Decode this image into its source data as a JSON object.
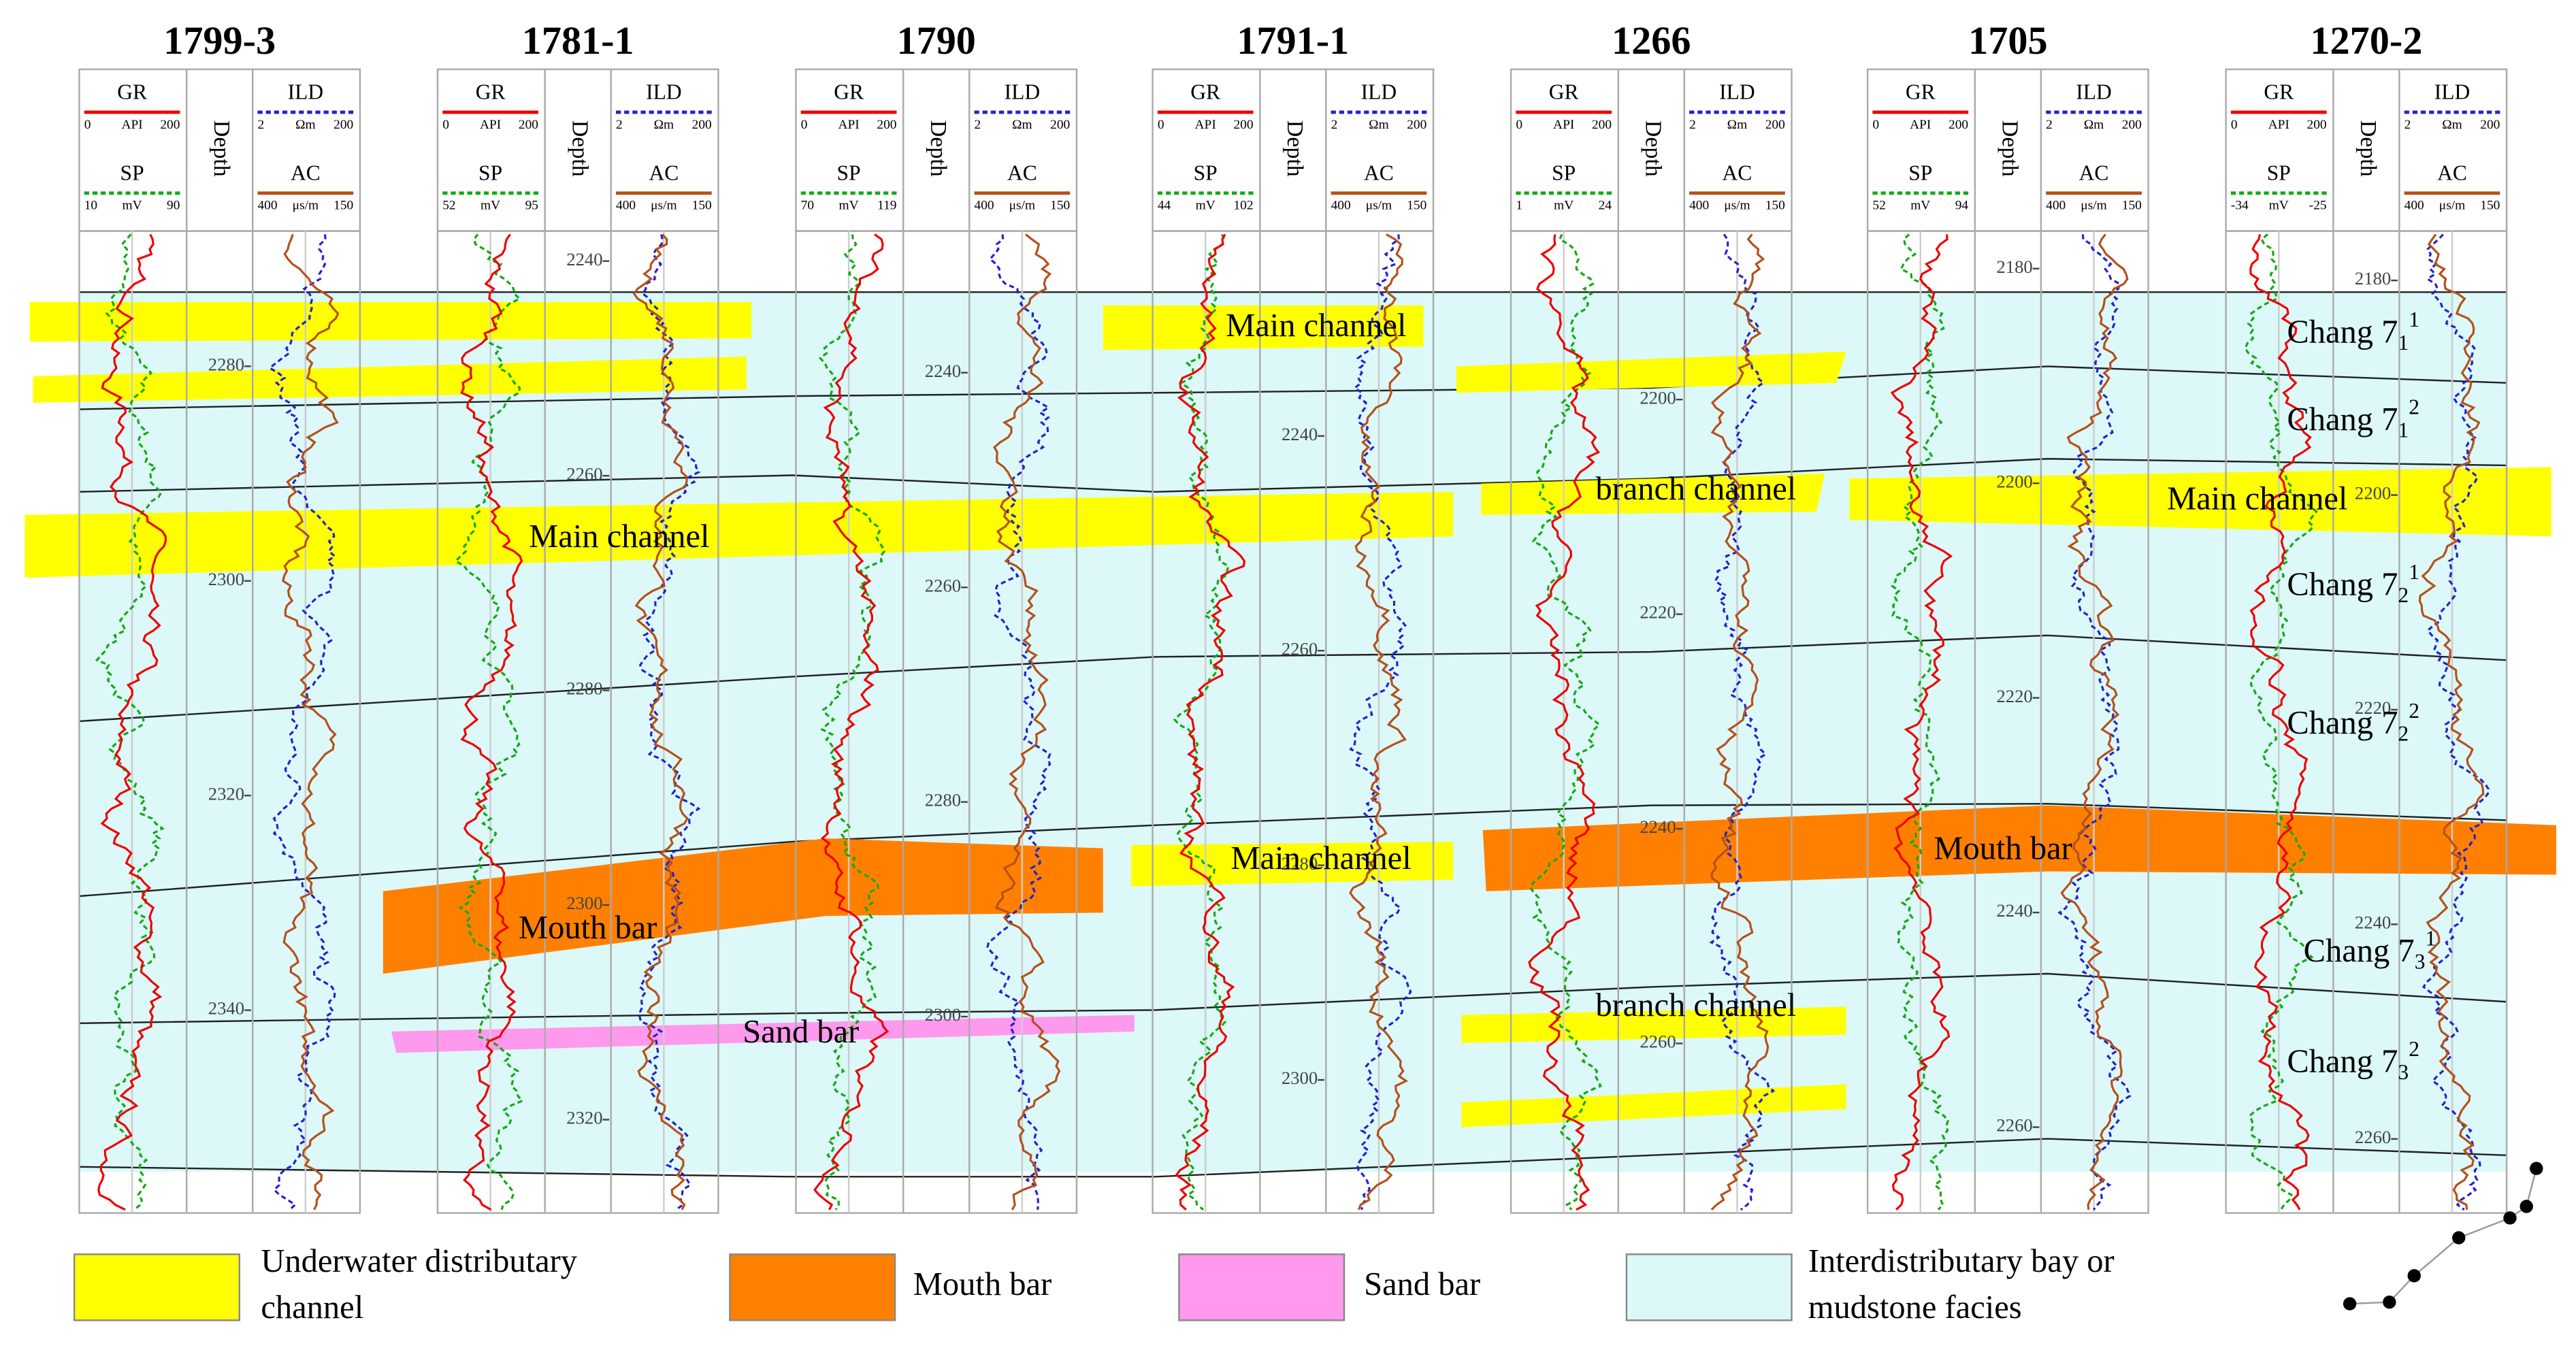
{
  "wells": [
    {
      "name": "1799-3",
      "curve_names": [
        "GR",
        "SP",
        "ILD",
        "AC"
      ],
      "gr_scale": [
        "0",
        "API",
        "200"
      ],
      "sp_scale": [
        "10",
        "mV",
        "90"
      ],
      "ild_scale": [
        "2",
        "Ωm",
        "200"
      ],
      "ac_scale": [
        "400",
        "μs/m",
        "150"
      ],
      "depth_label": "Depth",
      "depth_range": [
        2267.4,
        2358.9
      ],
      "depth_ticks": [
        2280,
        2300,
        2320,
        2340
      ]
    },
    {
      "name": "1781-1",
      "curve_names": [
        "GR",
        "SP",
        "ILD",
        "AC"
      ],
      "gr_scale": [
        "0",
        "API",
        "200"
      ],
      "sp_scale": [
        "52",
        "mV",
        "95"
      ],
      "ild_scale": [
        "2",
        "Ωm",
        "200"
      ],
      "ac_scale": [
        "400",
        "μs/m",
        "150"
      ],
      "depth_label": "Depth",
      "depth_range": [
        2237.2,
        2328.7
      ],
      "depth_ticks": [
        2240,
        2260,
        2280,
        2300,
        2320
      ]
    },
    {
      "name": "1790",
      "curve_names": [
        "GR",
        "SP",
        "ILD",
        "AC"
      ],
      "gr_scale": [
        "0",
        "API",
        "200"
      ],
      "sp_scale": [
        "70",
        "mV",
        "119"
      ],
      "ild_scale": [
        "2",
        "Ωm",
        "200"
      ],
      "ac_scale": [
        "400",
        "μs/m",
        "150"
      ],
      "depth_label": "Depth",
      "depth_range": [
        2226.8,
        2318.3
      ],
      "depth_ticks": [
        2240,
        2260,
        2280,
        2300
      ]
    },
    {
      "name": "1791-1",
      "curve_names": [
        "GR",
        "SP",
        "ILD",
        "AC"
      ],
      "gr_scale": [
        "0",
        "API",
        "200"
      ],
      "sp_scale": [
        "44",
        "mV",
        "102"
      ],
      "ild_scale": [
        "2",
        "Ωm",
        "200"
      ],
      "ac_scale": [
        "400",
        "μs/m",
        "150"
      ],
      "depth_label": "Depth",
      "depth_range": [
        2220.9,
        2312.4
      ],
      "depth_ticks": [
        2240,
        2260,
        2280,
        2300
      ]
    },
    {
      "name": "1266",
      "curve_names": [
        "GR",
        "SP",
        "ILD",
        "AC"
      ],
      "gr_scale": [
        "0",
        "API",
        "200"
      ],
      "sp_scale": [
        "1",
        "mV",
        "24"
      ],
      "ild_scale": [
        "2",
        "Ωm",
        "200"
      ],
      "ac_scale": [
        "400",
        "μs/m",
        "150"
      ],
      "depth_label": "Depth",
      "depth_range": [
        2184.3,
        2275.8
      ],
      "depth_ticks": [
        2200,
        2220,
        2240,
        2260
      ]
    },
    {
      "name": "1705",
      "curve_names": [
        "GR",
        "SP",
        "ILD",
        "AC"
      ],
      "gr_scale": [
        "0",
        "API",
        "200"
      ],
      "sp_scale": [
        "52",
        "mV",
        "94"
      ],
      "ild_scale": [
        "2",
        "Ωm",
        "200"
      ],
      "ac_scale": [
        "400",
        "μs/m",
        "150"
      ],
      "depth_label": "Depth",
      "depth_range": [
        2176.5,
        2268.0
      ],
      "depth_ticks": [
        2180,
        2200,
        2220,
        2240,
        2260
      ]
    },
    {
      "name": "1270-2",
      "curve_names": [
        "GR",
        "SP",
        "ILD",
        "AC"
      ],
      "gr_scale": [
        "0",
        "API",
        "200"
      ],
      "sp_scale": [
        "-34",
        "mV",
        "-25"
      ],
      "ild_scale": [
        "2",
        "Ωm",
        "200"
      ],
      "ac_scale": [
        "400",
        "μs/m",
        "150"
      ],
      "depth_label": "Depth",
      "depth_range": [
        2175.4,
        2266.9
      ],
      "depth_ticks": [
        2180,
        2200,
        2220,
        2240,
        2260
      ]
    }
  ],
  "facies_labels": [
    "Main channel",
    "Main channel",
    "branch channel",
    "Main channel",
    "Mouth bar",
    "Sand bar",
    "Main channel",
    "Mouth bar",
    "branch channel"
  ],
  "layers": [
    {
      "base": "Chang 7",
      "sub": "1",
      "sup": "1"
    },
    {
      "base": "Chang 7",
      "sub": "1",
      "sup": "2"
    },
    {
      "base": "Chang 7",
      "sub": "2",
      "sup": "1"
    },
    {
      "base": "Chang 7",
      "sub": "2",
      "sup": "2"
    },
    {
      "base": "Chang 7",
      "sub": "3",
      "sup": "1"
    },
    {
      "base": "Chang 7",
      "sub": "3",
      "sup": "2"
    }
  ],
  "legend": [
    {
      "lines": [
        "Underwater distributary",
        "channel"
      ],
      "color": "#ffff00"
    },
    {
      "lines": [
        "Mouth bar"
      ],
      "color": "#ff8000"
    },
    {
      "lines": [
        "Sand bar"
      ],
      "color": "#ff99ee"
    },
    {
      "lines": [
        "Interdistributary bay or",
        "mudstone facies"
      ],
      "color": "#dcf8f8"
    }
  ]
}
